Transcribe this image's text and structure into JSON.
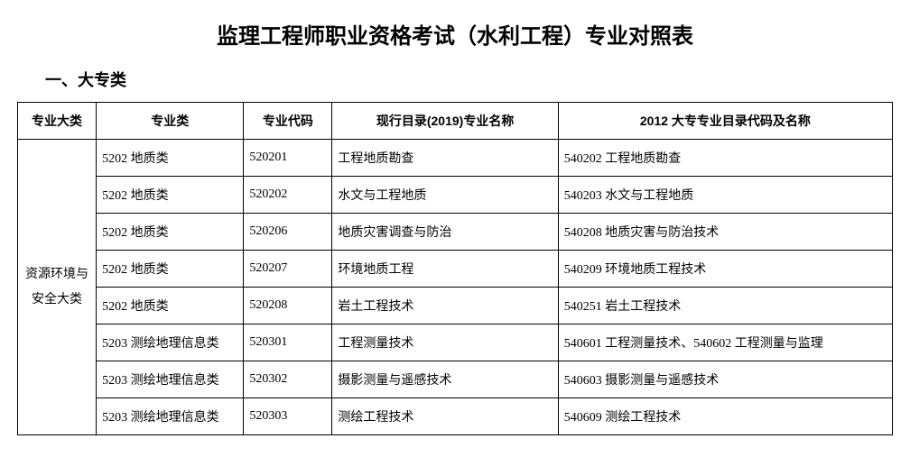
{
  "title": "监理工程师职业资格考试（水利工程）专业对照表",
  "section_header": "一、大专类",
  "table": {
    "headers": {
      "major_category": "专业大类",
      "major_class": "专业类",
      "major_code": "专业代码",
      "current_name": "现行目录(2019)专业名称",
      "name_2012": "2012 大专专业目录代码及名称"
    },
    "merged_category": "资源环境与安全大类",
    "rows": [
      {
        "major_class": "5202 地质类",
        "major_code": "520201",
        "current_name": "工程地质勘查",
        "name_2012": "540202 工程地质勘查"
      },
      {
        "major_class": "5202 地质类",
        "major_code": "520202",
        "current_name": "水文与工程地质",
        "name_2012": "540203 水文与工程地质"
      },
      {
        "major_class": "5202 地质类",
        "major_code": "520206",
        "current_name": "地质灾害调查与防治",
        "name_2012": "540208 地质灾害与防治技术"
      },
      {
        "major_class": "5202 地质类",
        "major_code": "520207",
        "current_name": "环境地质工程",
        "name_2012": "540209 环境地质工程技术"
      },
      {
        "major_class": "5202 地质类",
        "major_code": "520208",
        "current_name": "岩土工程技术",
        "name_2012": "540251 岩土工程技术"
      },
      {
        "major_class": "5203 测绘地理信息类",
        "major_code": "520301",
        "current_name": "工程测量技术",
        "name_2012": "540601 工程测量技术、540602 工程测量与监理"
      },
      {
        "major_class": "5203 测绘地理信息类",
        "major_code": "520302",
        "current_name": "摄影测量与遥感技术",
        "name_2012": "540603 摄影测量与遥感技术"
      },
      {
        "major_class": "5203 测绘地理信息类",
        "major_code": "520303",
        "current_name": "测绘工程技术",
        "name_2012": "540609 测绘工程技术"
      }
    ]
  },
  "colors": {
    "border": "#000000",
    "background": "#ffffff",
    "text": "#000000"
  }
}
